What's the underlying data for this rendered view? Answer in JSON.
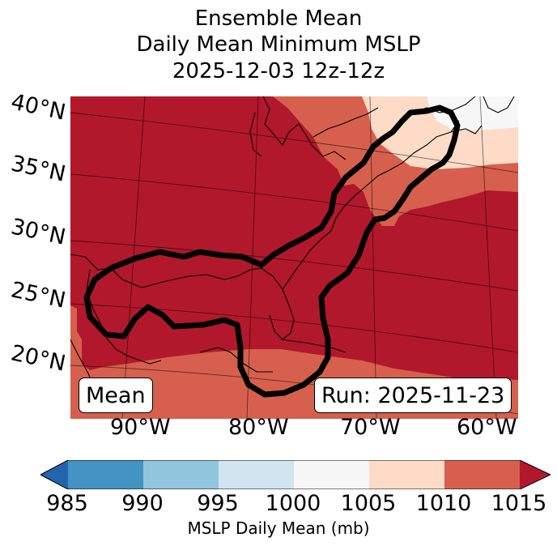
{
  "title": {
    "line1": "Ensemble Mean",
    "line2": "Daily Mean Minimum MSLP",
    "line3": "2025-12-03 12z-12z"
  },
  "lat_labels": [
    "40°N",
    "35°N",
    "30°N",
    "25°N",
    "20°N"
  ],
  "lon_labels": [
    "90°W",
    "80°W",
    "70°W",
    "60°W"
  ],
  "labels": {
    "mean_box": "Mean",
    "run_box": "Run: 2025-11-23"
  },
  "colorbar": {
    "label": "MSLP Daily Mean (mb)",
    "ticks": [
      "985",
      "990",
      "995",
      "1000",
      "1005",
      "1010",
      "1015"
    ],
    "bin_colors": [
      "#2166ac",
      "#4393c3",
      "#92c5de",
      "#d1e5f0",
      "#f7f7f7",
      "#fddbc7",
      "#d6604d",
      "#b2182b"
    ]
  },
  "colors": {
    "field_high": "#b2182b",
    "field_mid": "#d6604d",
    "field_light": "#fddbc7",
    "field_white": "#f7f7f7",
    "contour": "#000000"
  }
}
